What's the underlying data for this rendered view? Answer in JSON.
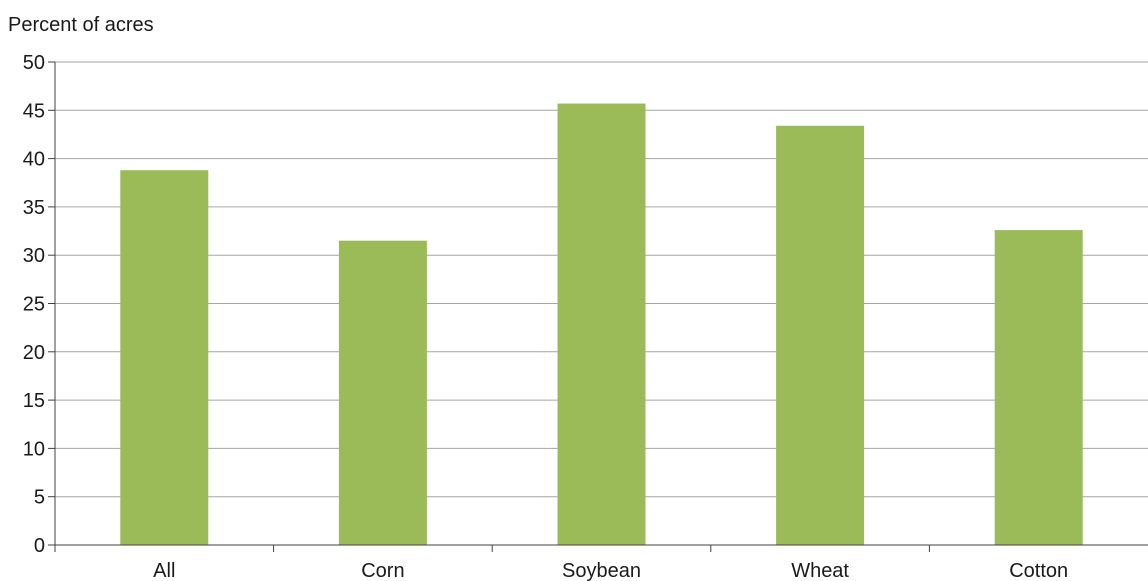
{
  "chart_data": {
    "type": "bar",
    "title": "",
    "xlabel": "",
    "ylabel": "Percent of acres",
    "categories": [
      "All",
      "Corn",
      "Soybean",
      "Wheat",
      "Cotton"
    ],
    "values": [
      38.8,
      31.5,
      45.7,
      43.4,
      32.6
    ],
    "ylim": [
      0,
      50
    ],
    "yticks": [
      0,
      5,
      10,
      15,
      20,
      25,
      30,
      35,
      40,
      45,
      50
    ],
    "grid": true,
    "legend": "none",
    "bar_color": "#9bbb59",
    "grid_color": "#a6a6a6",
    "axis_color": "#404040"
  }
}
